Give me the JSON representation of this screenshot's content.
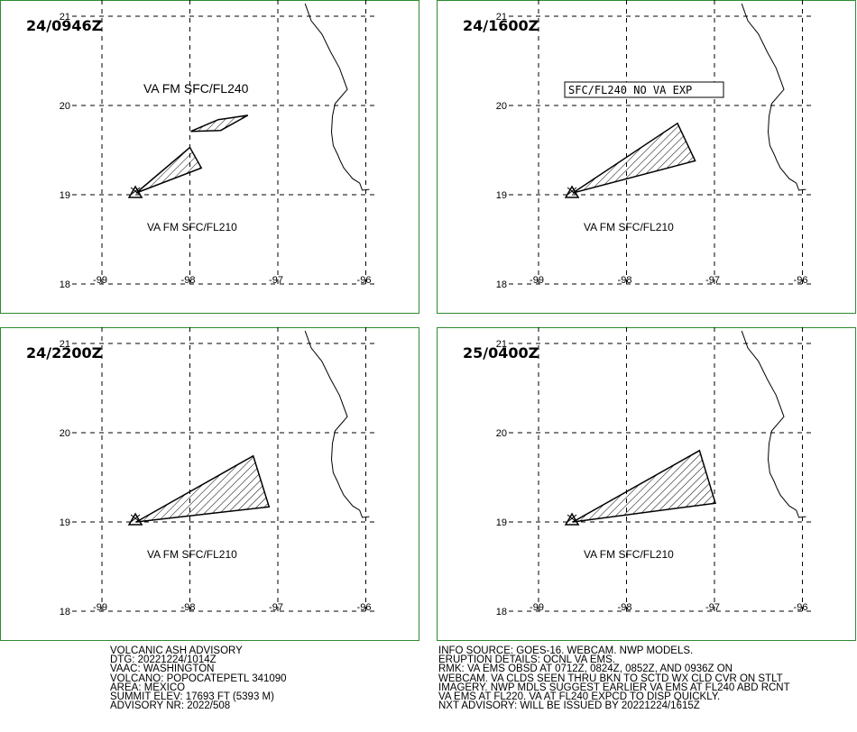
{
  "panels": [
    {
      "time": "24/0946Z",
      "labels": [
        "VA FM SFC/FL240",
        "VA FM SFC/FL210"
      ],
      "boxed_label": "",
      "polygons": [
        [
          [
            -97.68,
            19.84
          ],
          [
            -97.34,
            19.89
          ],
          [
            -97.65,
            19.72
          ],
          [
            -97.99,
            19.71
          ]
        ],
        [
          [
            -98.61,
            19.02
          ],
          [
            -98.0,
            19.53
          ],
          [
            -97.87,
            19.3
          ]
        ]
      ]
    },
    {
      "time": "24/1600Z",
      "labels": [
        "VA FM SFC/FL210"
      ],
      "boxed_label": "SFC/FL240 NO VA EXP",
      "polygons": [
        [
          [
            -98.61,
            19.02
          ],
          [
            -97.42,
            19.8
          ],
          [
            -97.22,
            19.38
          ]
        ]
      ]
    },
    {
      "time": "24/2200Z",
      "labels": [
        "VA FM SFC/FL210"
      ],
      "boxed_label": "",
      "polygons": [
        [
          [
            -98.61,
            19.0
          ],
          [
            -97.28,
            19.74
          ],
          [
            -97.1,
            19.17
          ]
        ]
      ]
    },
    {
      "time": "25/0400Z",
      "labels": [
        "VA FM SFC/FL210"
      ],
      "boxed_label": "",
      "polygons": [
        [
          [
            -98.61,
            19.0
          ],
          [
            -97.17,
            19.8
          ],
          [
            -96.99,
            19.21
          ]
        ]
      ]
    }
  ],
  "axes": {
    "lon_ticks": [
      "-99",
      "-98",
      "-97",
      "-96"
    ],
    "lat_ticks": [
      "21",
      "20",
      "19",
      "18"
    ]
  },
  "volcano": {
    "lat": 19.02,
    "lon": -98.62,
    "icon": "volcano-triangle-icon"
  },
  "coastline": [
    [
      -96.69,
      21.14
    ],
    [
      -96.62,
      20.95
    ],
    [
      -96.5,
      20.8
    ],
    [
      -96.4,
      20.6
    ],
    [
      -96.3,
      20.42
    ],
    [
      -96.21,
      20.18
    ],
    [
      -96.35,
      20.02
    ],
    [
      -96.38,
      19.88
    ],
    [
      -96.39,
      19.7
    ],
    [
      -96.37,
      19.55
    ],
    [
      -96.32,
      19.45
    ],
    [
      -96.29,
      19.38
    ],
    [
      -96.25,
      19.3
    ],
    [
      -96.15,
      19.18
    ],
    [
      -96.07,
      19.13
    ],
    [
      -96.04,
      19.05
    ],
    [
      -95.96,
      19.06
    ]
  ],
  "advisory_left": [
    "VOLCANIC ASH ADVISORY",
    "DTG: 20221224/1014Z",
    "VAAC: WASHINGTON",
    "VOLCANO: POPOCATEPETL 341090",
    "AREA: MEXICO",
    "SUMMIT ELEV: 17693 FT (5393 M)",
    "ADVISORY NR: 2022/508"
  ],
  "advisory_right": [
    "INFO SOURCE: GOES-16. WEBCAM. NWP MODELS.",
    "ERUPTION DETAILS: OCNL VA EMS.",
    "RMK: VA EMS OBSD AT 0712Z, 0824Z, 0852Z, AND 0936Z ON",
    "WEBCAM. VA CLDS SEEN THRU BKN TO SCTD WX CLD CVR ON STLT",
    "IMAGERY. NWP MDLS SUGGEST EARLIER VA EMS AT FL240 ABD RCNT",
    "VA EMS AT FL220. VA AT FL240 EXPCD TO DISP QUICKLY.",
    "NXT ADVISORY: WILL BE ISSUED BY 20221224/1615Z"
  ],
  "colors": {
    "frame": "#2e8b2e",
    "grid": "#000000",
    "hatch": "#000000"
  }
}
